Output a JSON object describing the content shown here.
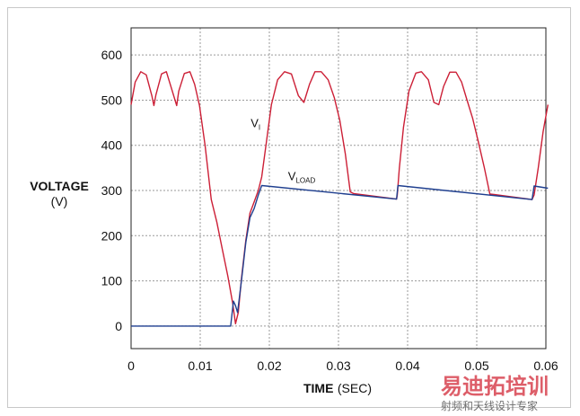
{
  "chart_data": {
    "type": "line",
    "xlabel": "TIME",
    "xlabel_unit": "(SEC)",
    "ylabel": "VOLTAGE",
    "ylabel_unit": "(V)",
    "xlim": [
      0,
      0.06
    ],
    "ylim": [
      -50,
      660
    ],
    "x_ticks": [
      0,
      0.01,
      0.02,
      0.03,
      0.04,
      0.05,
      0.06
    ],
    "x_tick_labels": [
      "0",
      "0.01",
      "0.02",
      "0.03",
      "0.04",
      "0.05",
      "0.06"
    ],
    "y_ticks": [
      0,
      100,
      200,
      300,
      400,
      500,
      600
    ],
    "y_tick_labels": [
      "0",
      "100",
      "200",
      "300",
      "400",
      "500",
      "600"
    ],
    "grid": true,
    "series": [
      {
        "name_main": "V",
        "name_sub": "I",
        "color": "#cc1f36",
        "points": [
          [
            0,
            490
          ],
          [
            0.0006,
            540
          ],
          [
            0.0014,
            563
          ],
          [
            0.0022,
            556
          ],
          [
            0.003,
            510
          ],
          [
            0.0033,
            488
          ],
          [
            0.0036,
            512
          ],
          [
            0.0044,
            558
          ],
          [
            0.0051,
            563
          ],
          [
            0.0058,
            528
          ],
          [
            0.0066,
            488
          ],
          [
            0.0069,
            520
          ],
          [
            0.0077,
            559
          ],
          [
            0.0085,
            563
          ],
          [
            0.0092,
            535
          ],
          [
            0.0099,
            488
          ],
          [
            0.0107,
            400
          ],
          [
            0.0116,
            280
          ],
          [
            0.0124,
            230
          ],
          [
            0.0132,
            170
          ],
          [
            0.014,
            110
          ],
          [
            0.0147,
            50
          ],
          [
            0.0151,
            5
          ],
          [
            0.0155,
            30
          ],
          [
            0.016,
            110
          ],
          [
            0.0166,
            190
          ],
          [
            0.0172,
            250
          ],
          [
            0.0178,
            275
          ],
          [
            0.0184,
            300
          ],
          [
            0.0189,
            330
          ],
          [
            0.0196,
            410
          ],
          [
            0.0203,
            490
          ],
          [
            0.0212,
            545
          ],
          [
            0.0222,
            563
          ],
          [
            0.0232,
            558
          ],
          [
            0.0242,
            510
          ],
          [
            0.025,
            495
          ],
          [
            0.0258,
            535
          ],
          [
            0.0266,
            563
          ],
          [
            0.0275,
            563
          ],
          [
            0.0285,
            545
          ],
          [
            0.0294,
            505
          ],
          [
            0.0302,
            455
          ],
          [
            0.031,
            380
          ],
          [
            0.0317,
            297
          ],
          [
            0.0322,
            293
          ],
          [
            0.0384,
            281
          ],
          [
            0.0385,
            290
          ],
          [
            0.0388,
            350
          ],
          [
            0.0394,
            440
          ],
          [
            0.0402,
            520
          ],
          [
            0.0412,
            560
          ],
          [
            0.042,
            563
          ],
          [
            0.043,
            545
          ],
          [
            0.0438,
            495
          ],
          [
            0.0445,
            490
          ],
          [
            0.0452,
            530
          ],
          [
            0.0461,
            562
          ],
          [
            0.047,
            562
          ],
          [
            0.0478,
            540
          ],
          [
            0.0486,
            500
          ],
          [
            0.0494,
            460
          ],
          [
            0.0502,
            410
          ],
          [
            0.0511,
            350
          ],
          [
            0.0519,
            292
          ],
          [
            0.0525,
            291
          ],
          [
            0.058,
            280
          ],
          [
            0.0583,
            290
          ],
          [
            0.0589,
            350
          ],
          [
            0.0596,
            430
          ],
          [
            0.0603,
            490
          ]
        ]
      },
      {
        "name_main": "V",
        "name_sub": "LOAD",
        "color": "#1f3f8f",
        "points": [
          [
            0,
            0
          ],
          [
            0.0144,
            0
          ],
          [
            0.0148,
            55
          ],
          [
            0.0151,
            45
          ],
          [
            0.0154,
            30
          ],
          [
            0.016,
            105
          ],
          [
            0.0166,
            185
          ],
          [
            0.0172,
            240
          ],
          [
            0.0178,
            260
          ],
          [
            0.0184,
            290
          ],
          [
            0.0189,
            311
          ],
          [
            0.0384,
            281
          ],
          [
            0.0386,
            311
          ],
          [
            0.058,
            280
          ],
          [
            0.0583,
            310
          ],
          [
            0.0603,
            305
          ]
        ]
      }
    ]
  },
  "watermark": {
    "main": "易迪拓培训",
    "sub": "射频和天线设计专家"
  }
}
